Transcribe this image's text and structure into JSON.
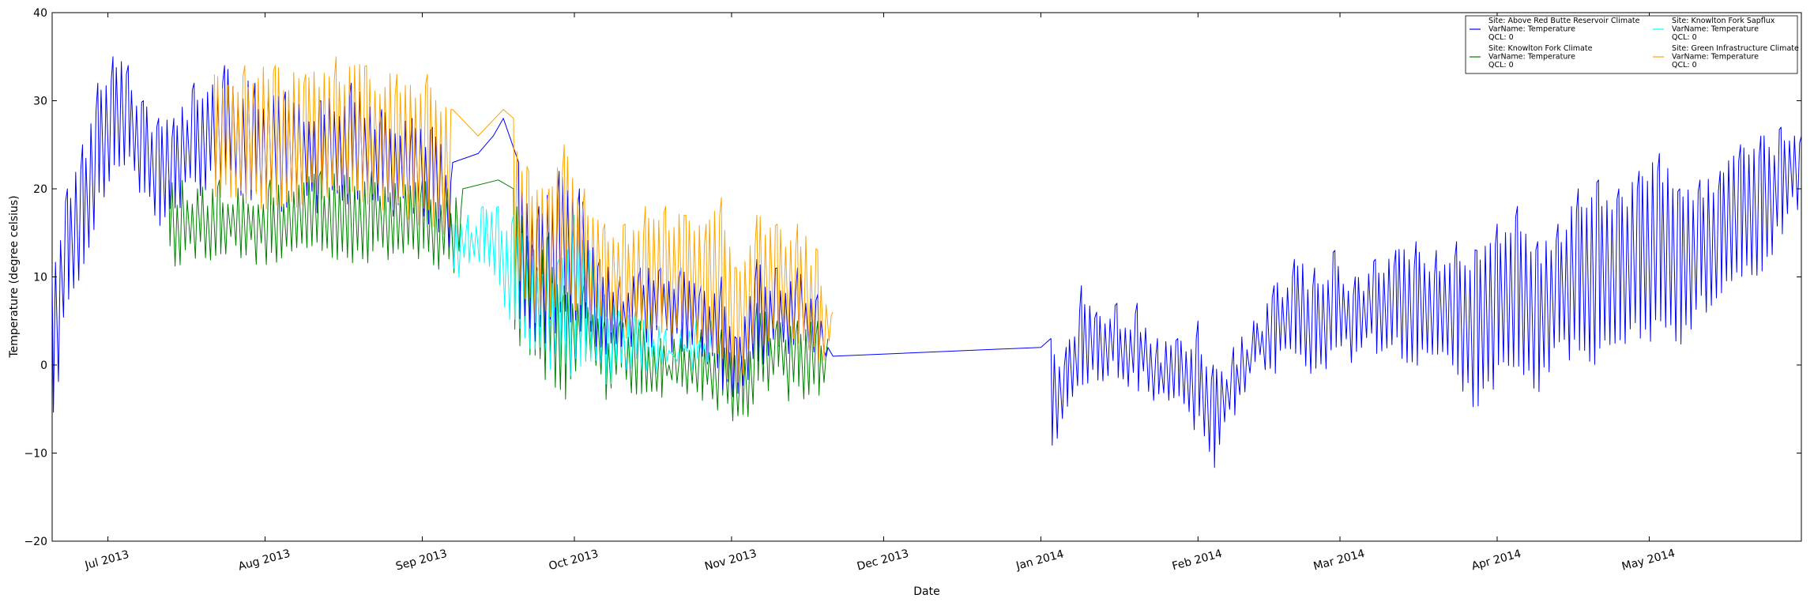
{
  "chart_data": {
    "type": "line",
    "title": "",
    "xlabel": "Date",
    "ylabel": "Temperature (degree celsius)",
    "xlim": [
      "2013-06-20",
      "2014-05-31"
    ],
    "ylim": [
      -20,
      40
    ],
    "y_ticks": [
      -20,
      -10,
      0,
      10,
      20,
      30,
      40
    ],
    "x_ticks": [
      {
        "date": "2013-07-01",
        "label": "Jul 2013"
      },
      {
        "date": "2013-08-01",
        "label": "Aug 2013"
      },
      {
        "date": "2013-09-01",
        "label": "Sep 2013"
      },
      {
        "date": "2013-10-01",
        "label": "Oct 2013"
      },
      {
        "date": "2013-11-01",
        "label": "Nov 2013"
      },
      {
        "date": "2013-12-01",
        "label": "Dec 2013"
      },
      {
        "date": "2014-01-01",
        "label": "Jan 2014"
      },
      {
        "date": "2014-02-01",
        "label": "Feb 2014"
      },
      {
        "date": "2014-03-01",
        "label": "Mar 2014"
      },
      {
        "date": "2014-04-01",
        "label": "Apr 2014"
      },
      {
        "date": "2014-05-01",
        "label": "May 2014"
      }
    ],
    "grid": false,
    "legend_position": "top-right",
    "series": [
      {
        "name": "Site: Knowlton Fork Climate\nVarName: Temperature\nQCL: 0",
        "color": "#008000",
        "daily": [
          [
            "2013-07-13",
            21,
            11
          ],
          [
            "2013-07-23",
            21,
            12
          ],
          [
            "2013-08-02",
            21,
            11
          ],
          [
            "2013-08-12",
            22,
            12
          ],
          [
            "2013-08-22",
            22,
            11
          ],
          [
            "2013-09-01",
            21,
            12
          ],
          [
            "2013-09-06",
            20,
            10
          ],
          [
            "2013-09-09",
            20,
            10
          ],
          [
            "2013-09-16",
            21,
            null
          ],
          [
            "2013-09-19",
            20,
            3
          ],
          [
            "2013-09-23",
            13,
            -1
          ],
          [
            "2013-09-26",
            15,
            -2
          ],
          [
            "2013-09-29",
            9,
            -5
          ],
          [
            "2013-10-03",
            10,
            0
          ],
          [
            "2013-10-07",
            5,
            -4
          ],
          [
            "2013-10-10",
            5,
            -3
          ],
          [
            "2013-10-14",
            5,
            -4
          ],
          [
            "2013-10-18",
            3,
            -4
          ],
          [
            "2013-10-22",
            3,
            -4
          ],
          [
            "2013-10-26",
            4,
            -4
          ],
          [
            "2013-10-30",
            4,
            -6
          ],
          [
            "2013-11-03",
            1,
            -8
          ],
          [
            "2013-11-06",
            7,
            -4
          ],
          [
            "2013-11-10",
            5,
            -3
          ],
          [
            "2013-11-14",
            5,
            -5
          ],
          [
            "2013-11-18",
            5,
            -4
          ],
          [
            "2013-11-20",
            3,
            -3
          ]
        ]
      },
      {
        "name": "Site: Knowlton Fork Sapflux\nVarName: Temperature\nQCL: 0",
        "color": "#00ffff",
        "daily": [
          [
            "2013-09-07",
            16,
            10
          ],
          [
            "2013-09-10",
            17,
            9
          ],
          [
            "2013-09-13",
            18,
            10
          ],
          [
            "2013-09-16",
            18,
            8
          ],
          [
            "2013-09-19",
            17,
            3
          ],
          [
            "2013-09-22",
            14,
            2
          ],
          [
            "2013-09-25",
            10,
            -1
          ],
          [
            "2013-09-28",
            12,
            0
          ],
          [
            "2013-10-01",
            17,
            -2
          ],
          [
            "2013-10-04",
            13,
            0
          ],
          [
            "2013-10-07",
            8,
            -3
          ],
          [
            "2013-10-10",
            6,
            -2
          ],
          [
            "2013-10-13",
            6,
            -2
          ],
          [
            "2013-10-16",
            6,
            -1
          ],
          [
            "2013-10-19",
            4,
            -2
          ],
          [
            "2013-10-22",
            4,
            -1
          ],
          [
            "2013-10-25",
            5,
            -1
          ],
          [
            "2013-10-28",
            5,
            -2
          ]
        ]
      },
      {
        "name": "Site: Above Red Butte Reservoir Climate\nVarName: Temperature\nQCL: 0",
        "color": "#0000ff",
        "daily": [
          [
            "2013-06-20",
            10,
            -9
          ],
          [
            "2013-06-23",
            20,
            7
          ],
          [
            "2013-06-26",
            25,
            10
          ],
          [
            "2013-06-29",
            32,
            17
          ],
          [
            "2013-07-02",
            35,
            21
          ],
          [
            "2013-07-05",
            34,
            22
          ],
          [
            "2013-07-08",
            30,
            17
          ],
          [
            "2013-07-11",
            28,
            15
          ],
          [
            "2013-07-14",
            28,
            17
          ],
          [
            "2013-07-18",
            32,
            19
          ],
          [
            "2013-07-24",
            34,
            20
          ],
          [
            "2013-07-30",
            32,
            18
          ],
          [
            "2013-08-05",
            31,
            17
          ],
          [
            "2013-08-12",
            30,
            17
          ],
          [
            "2013-08-18",
            32,
            18
          ],
          [
            "2013-08-24",
            29,
            17
          ],
          [
            "2013-08-30",
            28,
            16
          ],
          [
            "2013-09-03",
            27,
            15
          ],
          [
            "2013-09-07",
            23,
            12
          ],
          [
            "2013-09-12",
            24,
            null
          ],
          [
            "2013-09-15",
            26,
            null
          ],
          [
            "2013-09-17",
            28,
            null
          ],
          [
            "2013-09-20",
            23,
            5
          ],
          [
            "2013-09-24",
            18,
            2
          ],
          [
            "2013-09-28",
            22,
            3
          ],
          [
            "2013-10-02",
            20,
            4
          ],
          [
            "2013-10-06",
            12,
            0
          ],
          [
            "2013-10-10",
            10,
            1
          ],
          [
            "2013-10-14",
            11,
            2
          ],
          [
            "2013-10-18",
            11,
            2
          ],
          [
            "2013-10-22",
            11,
            1
          ],
          [
            "2013-10-26",
            9,
            0
          ],
          [
            "2013-10-30",
            10,
            -3
          ],
          [
            "2013-11-02",
            3,
            -5
          ],
          [
            "2013-11-06",
            12,
            0
          ],
          [
            "2013-11-10",
            11,
            0
          ],
          [
            "2013-11-14",
            11,
            1
          ],
          [
            "2013-11-18",
            8,
            0
          ],
          [
            "2013-11-20",
            2,
            0
          ],
          [
            "2013-11-21",
            1,
            null
          ],
          [
            "2014-01-01",
            2,
            null
          ],
          [
            "2014-01-03",
            3,
            -12
          ],
          [
            "2014-01-06",
            2,
            -5
          ],
          [
            "2014-01-09",
            9,
            -3
          ],
          [
            "2014-01-12",
            6,
            -3
          ],
          [
            "2014-01-16",
            7,
            -2
          ],
          [
            "2014-01-20",
            7,
            -3
          ],
          [
            "2014-01-24",
            3,
            -5
          ],
          [
            "2014-01-28",
            3,
            -6
          ],
          [
            "2014-02-01",
            5,
            -8
          ],
          [
            "2014-02-04",
            0,
            -12
          ],
          [
            "2014-02-08",
            2,
            -6
          ],
          [
            "2014-02-12",
            5,
            -2
          ],
          [
            "2014-02-16",
            9,
            -1
          ],
          [
            "2014-02-20",
            12,
            0
          ],
          [
            "2014-02-24",
            11,
            -3
          ],
          [
            "2014-02-28",
            13,
            0
          ],
          [
            "2014-03-04",
            10,
            0
          ],
          [
            "2014-03-08",
            12,
            1
          ],
          [
            "2014-03-12",
            13,
            1
          ],
          [
            "2014-03-16",
            14,
            -1
          ],
          [
            "2014-03-20",
            13,
            0
          ],
          [
            "2014-03-24",
            14,
            -2
          ],
          [
            "2014-03-28",
            13,
            -6
          ],
          [
            "2014-04-01",
            16,
            -2
          ],
          [
            "2014-04-05",
            18,
            0
          ],
          [
            "2014-04-09",
            14,
            -4
          ],
          [
            "2014-04-13",
            16,
            0
          ],
          [
            "2014-04-17",
            20,
            0
          ],
          [
            "2014-04-21",
            21,
            0
          ],
          [
            "2014-04-25",
            20,
            1
          ],
          [
            "2014-04-29",
            22,
            2
          ],
          [
            "2014-05-03",
            24,
            3
          ],
          [
            "2014-05-07",
            20,
            2
          ],
          [
            "2014-05-11",
            21,
            5
          ],
          [
            "2014-05-15",
            22,
            8
          ],
          [
            "2014-05-19",
            25,
            10
          ],
          [
            "2014-05-23",
            26,
            10
          ],
          [
            "2014-05-27",
            27,
            14
          ],
          [
            "2014-05-31",
            26,
            18
          ]
        ]
      },
      {
        "name": "Site: Green Infrastructure Climate\nVarName: Temperature\nQCL: 0",
        "color": "#ffa500",
        "daily": [
          [
            "2013-07-22",
            33,
            18
          ],
          [
            "2013-07-28",
            34,
            18
          ],
          [
            "2013-08-03",
            34,
            17
          ],
          [
            "2013-08-09",
            33,
            18
          ],
          [
            "2013-08-15",
            35,
            18
          ],
          [
            "2013-08-21",
            34,
            18
          ],
          [
            "2013-08-27",
            33,
            17
          ],
          [
            "2013-09-02",
            33,
            15
          ],
          [
            "2013-09-07",
            29,
            13
          ],
          [
            "2013-09-12",
            26,
            null
          ],
          [
            "2013-09-17",
            29,
            null
          ],
          [
            "2013-09-19",
            28,
            8
          ],
          [
            "2013-09-22",
            22,
            5
          ],
          [
            "2013-09-26",
            20,
            3
          ],
          [
            "2013-09-29",
            25,
            5
          ],
          [
            "2013-10-03",
            20,
            5
          ],
          [
            "2013-10-07",
            16,
            3
          ],
          [
            "2013-10-11",
            16,
            3
          ],
          [
            "2013-10-15",
            18,
            3
          ],
          [
            "2013-10-19",
            18,
            2
          ],
          [
            "2013-10-23",
            17,
            2
          ],
          [
            "2013-10-27",
            16,
            0
          ],
          [
            "2013-10-30",
            19,
            -2
          ],
          [
            "2013-11-02",
            11,
            -3
          ],
          [
            "2013-11-06",
            17,
            2
          ],
          [
            "2013-11-10",
            16,
            2
          ],
          [
            "2013-11-14",
            16,
            1
          ],
          [
            "2013-11-18",
            13,
            0
          ],
          [
            "2013-11-21",
            6,
            1
          ]
        ]
      }
    ]
  }
}
